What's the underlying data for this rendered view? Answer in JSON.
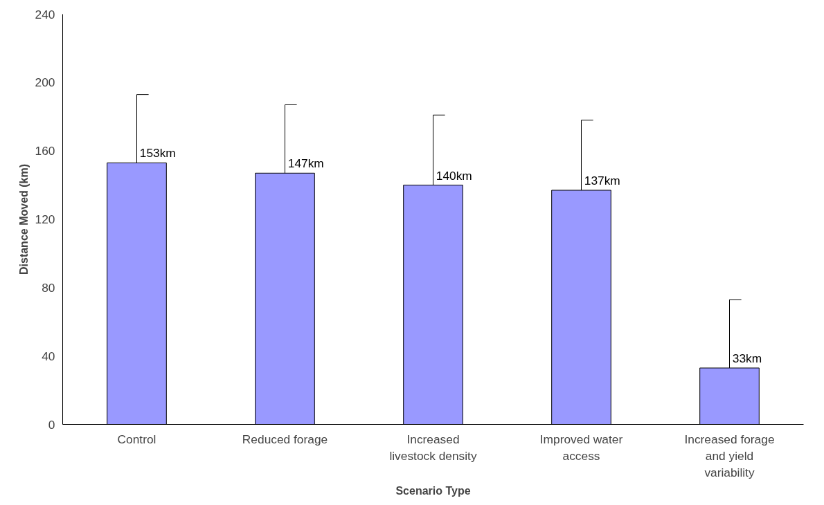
{
  "chart_data": {
    "type": "bar",
    "xlabel": "Scenario Type",
    "ylabel": "Distance Moved (km)",
    "categories": [
      "Control",
      "Reduced forage",
      "Increased livestock density",
      "Improved water access",
      "Increased forage and yield variability"
    ],
    "values": [
      153,
      147,
      140,
      137,
      33
    ],
    "errors": [
      [
        153,
        193
      ],
      [
        147,
        187
      ],
      [
        140,
        181
      ],
      [
        137,
        178
      ],
      [
        33,
        73
      ]
    ],
    "value_labels": [
      "153km",
      "147km",
      "140km",
      "137km",
      "33km"
    ],
    "color": "#9999ff",
    "ylim": [
      0,
      240
    ],
    "yticks": [
      0,
      40,
      80,
      120,
      160,
      200,
      240
    ],
    "grid": false
  }
}
